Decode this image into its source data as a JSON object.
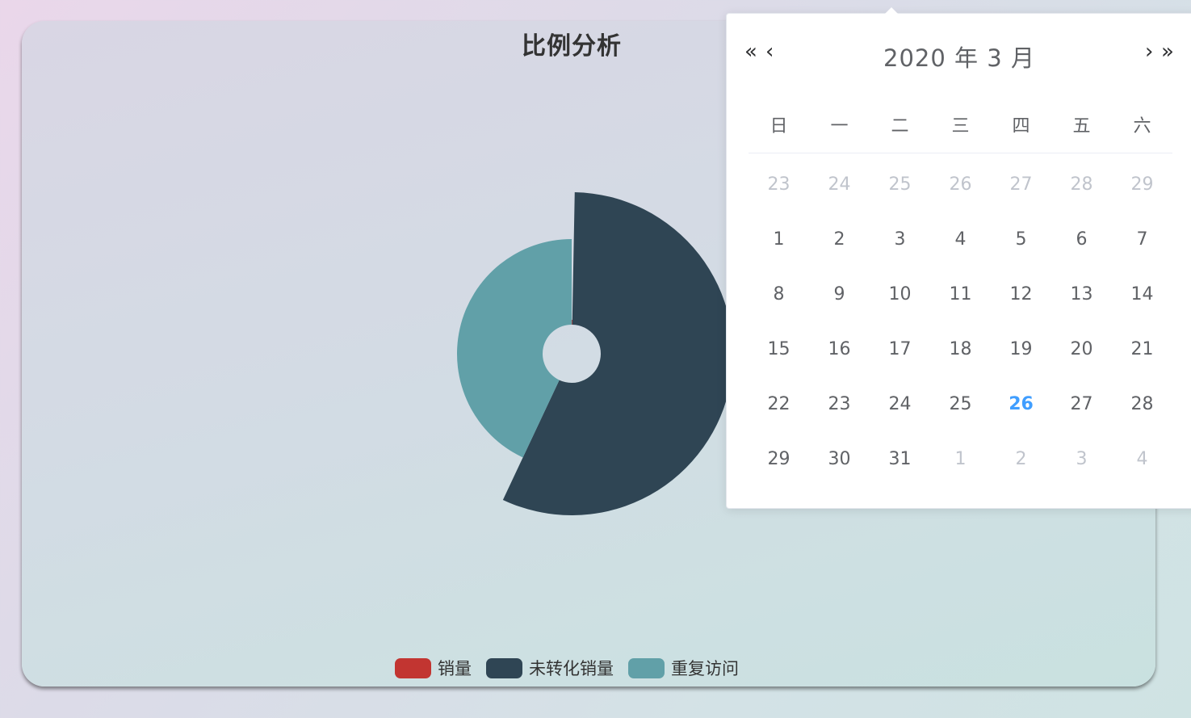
{
  "chart_data": {
    "type": "pie",
    "title": "比例分析",
    "series": [
      {
        "name": "销量",
        "value": 0.3,
        "color": "#c23531"
      },
      {
        "name": "未转化销量",
        "value": 56.7,
        "color": "#2f4554"
      },
      {
        "name": "重复访问",
        "value": 43,
        "color": "#61a0a8"
      }
    ]
  },
  "legend": [
    {
      "label": "销量",
      "color": "#c23531"
    },
    {
      "label": "未转化销量",
      "color": "#2f4554"
    },
    {
      "label": "重复访问",
      "color": "#61a0a8"
    }
  ],
  "datepicker": {
    "title": "2020 年  3 月",
    "prev_year": "«",
    "prev_month": "‹",
    "next_month": "›",
    "next_year": "»",
    "weekdays": [
      "日",
      "一",
      "二",
      "三",
      "四",
      "五",
      "六"
    ],
    "weeks": [
      [
        {
          "d": "23",
          "o": true
        },
        {
          "d": "24",
          "o": true
        },
        {
          "d": "25",
          "o": true
        },
        {
          "d": "26",
          "o": true
        },
        {
          "d": "27",
          "o": true
        },
        {
          "d": "28",
          "o": true
        },
        {
          "d": "29",
          "o": true
        }
      ],
      [
        {
          "d": "1"
        },
        {
          "d": "2"
        },
        {
          "d": "3"
        },
        {
          "d": "4"
        },
        {
          "d": "5"
        },
        {
          "d": "6"
        },
        {
          "d": "7"
        }
      ],
      [
        {
          "d": "8"
        },
        {
          "d": "9"
        },
        {
          "d": "10"
        },
        {
          "d": "11"
        },
        {
          "d": "12"
        },
        {
          "d": "13"
        },
        {
          "d": "14"
        }
      ],
      [
        {
          "d": "15"
        },
        {
          "d": "16"
        },
        {
          "d": "17"
        },
        {
          "d": "18"
        },
        {
          "d": "19"
        },
        {
          "d": "20"
        },
        {
          "d": "21"
        }
      ],
      [
        {
          "d": "22"
        },
        {
          "d": "23"
        },
        {
          "d": "24"
        },
        {
          "d": "25"
        },
        {
          "d": "26",
          "t": true
        },
        {
          "d": "27"
        },
        {
          "d": "28"
        }
      ],
      [
        {
          "d": "29"
        },
        {
          "d": "30"
        },
        {
          "d": "31"
        },
        {
          "d": "1",
          "o": true
        },
        {
          "d": "2",
          "o": true
        },
        {
          "d": "3",
          "o": true
        },
        {
          "d": "4",
          "o": true
        }
      ]
    ]
  }
}
